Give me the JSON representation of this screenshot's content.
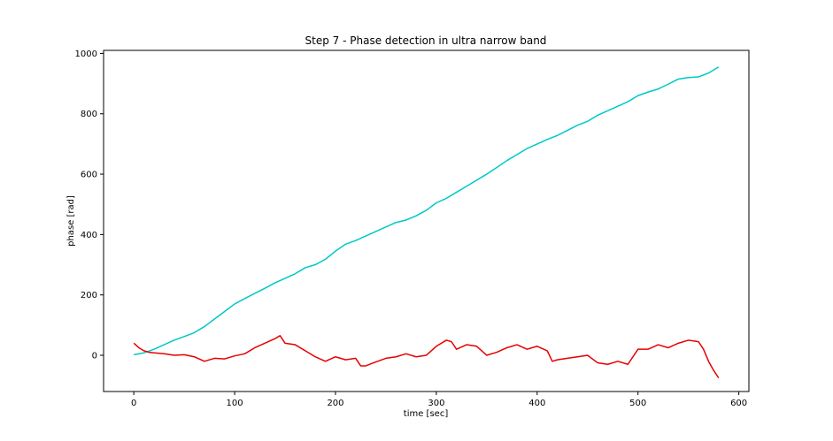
{
  "chart_data": {
    "type": "line",
    "title": "Step 7 - Phase detection in ultra narrow band",
    "xlabel": "time [sec]",
    "ylabel": "phase [rad]",
    "xlim": [
      -30,
      610
    ],
    "ylim": [
      -120,
      1010
    ],
    "xticks": [
      0,
      100,
      200,
      300,
      400,
      500,
      600
    ],
    "yticks": [
      0,
      200,
      400,
      600,
      800,
      1000
    ],
    "xtick_labels": [
      "0",
      "100",
      "200",
      "300",
      "400",
      "500",
      "600"
    ],
    "ytick_labels": [
      "0",
      "200",
      "400",
      "600",
      "800",
      "1000"
    ],
    "grid": false,
    "series": [
      {
        "color": "#00c8c8",
        "x": [
          0,
          10,
          20,
          30,
          40,
          50,
          60,
          70,
          80,
          90,
          100,
          110,
          120,
          130,
          140,
          150,
          160,
          170,
          180,
          190,
          200,
          210,
          220,
          230,
          240,
          250,
          260,
          270,
          280,
          290,
          300,
          310,
          320,
          330,
          340,
          350,
          360,
          370,
          380,
          390,
          400,
          410,
          420,
          430,
          440,
          450,
          460,
          470,
          480,
          490,
          500,
          510,
          520,
          530,
          540,
          550,
          560,
          570,
          580
        ],
        "values": [
          2,
          8,
          20,
          35,
          50,
          62,
          75,
          95,
          120,
          145,
          170,
          188,
          205,
          222,
          240,
          255,
          270,
          290,
          300,
          318,
          345,
          368,
          380,
          395,
          410,
          425,
          440,
          448,
          462,
          480,
          505,
          520,
          540,
          560,
          580,
          600,
          622,
          645,
          665,
          685,
          700,
          715,
          728,
          745,
          762,
          775,
          795,
          810,
          825,
          840,
          860,
          872,
          882,
          898,
          915,
          920,
          922,
          935,
          955
        ]
      },
      {
        "color": "#e60000",
        "x": [
          0,
          5,
          10,
          15,
          20,
          30,
          40,
          50,
          60,
          70,
          80,
          90,
          100,
          110,
          120,
          130,
          140,
          145,
          150,
          160,
          170,
          180,
          190,
          200,
          210,
          220,
          225,
          230,
          240,
          250,
          260,
          270,
          280,
          290,
          300,
          310,
          315,
          320,
          330,
          340,
          350,
          360,
          370,
          380,
          390,
          400,
          410,
          415,
          420,
          430,
          440,
          450,
          460,
          470,
          480,
          490,
          500,
          510,
          520,
          530,
          540,
          550,
          560,
          565,
          570,
          575,
          580
        ],
        "values": [
          40,
          25,
          15,
          10,
          8,
          5,
          0,
          2,
          -5,
          -20,
          -10,
          -12,
          -2,
          5,
          25,
          40,
          55,
          65,
          40,
          35,
          15,
          -5,
          -20,
          -5,
          -15,
          -10,
          -35,
          -35,
          -22,
          -10,
          -5,
          5,
          -5,
          0,
          30,
          50,
          45,
          20,
          35,
          30,
          0,
          10,
          25,
          35,
          20,
          30,
          15,
          -20,
          -15,
          -10,
          -5,
          0,
          -25,
          -30,
          -20,
          -30,
          20,
          20,
          35,
          25,
          40,
          50,
          45,
          20,
          -20,
          -50,
          -75
        ]
      }
    ]
  }
}
